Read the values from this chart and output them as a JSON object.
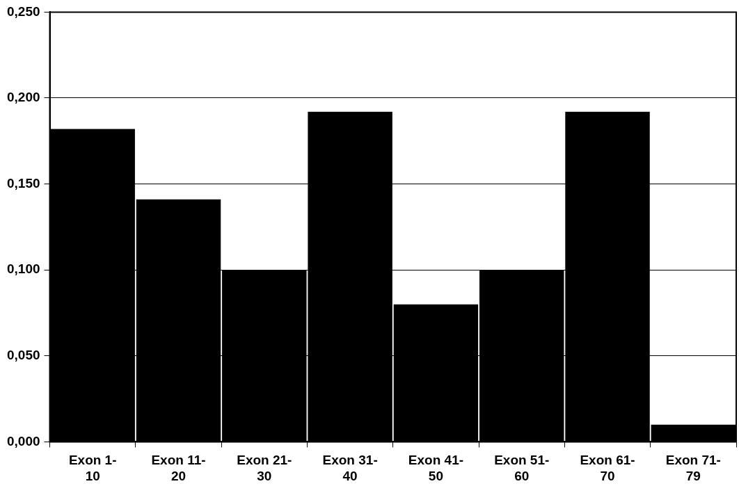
{
  "chart_data": {
    "type": "bar",
    "categories": [
      "Exon 1-10",
      "Exon 11-20",
      "Exon 21-30",
      "Exon 31-40",
      "Exon 41-50",
      "Exon 51-60",
      "Exon 61-70",
      "Exon 71-79"
    ],
    "values": [
      0.182,
      0.141,
      0.1,
      0.192,
      0.08,
      0.1,
      0.192,
      0.01
    ],
    "color": "#000000",
    "ylim": [
      0,
      0.25
    ],
    "yticks": [
      {
        "value": 0,
        "label": "0,000"
      },
      {
        "value": 0.05,
        "label": "0,050"
      },
      {
        "value": 0.1,
        "label": "0,100"
      },
      {
        "value": 0.15,
        "label": "0,150"
      },
      {
        "value": 0.2,
        "label": "0,200"
      },
      {
        "value": 0.25,
        "label": "0,250"
      }
    ],
    "grid": "y",
    "legend": false
  }
}
